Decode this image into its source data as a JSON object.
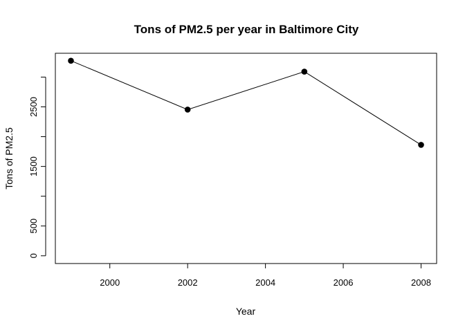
{
  "chart_data": {
    "type": "line",
    "title": "Tons of PM2.5 per year in Baltimore City",
    "xlabel": "Year",
    "ylabel": "Tons of PM2.5",
    "x": [
      1999,
      2002,
      2005,
      2008
    ],
    "series": [
      {
        "values": [
          3274.18,
          2453.92,
          3091.35,
          1862.28
        ]
      }
    ],
    "xlim": [
      1998.6,
      2008.4
    ],
    "ylim": [
      -130,
      3400
    ],
    "xticks": [
      2000,
      2002,
      2004,
      2006,
      2008
    ],
    "yticks": [
      0,
      500,
      1000,
      1500,
      2000,
      2500,
      3000
    ],
    "yticklabels": [
      "0",
      "500",
      "",
      "1500",
      "",
      "2500",
      ""
    ],
    "grid": false,
    "legend": "none",
    "marker": "filled-circle",
    "color": "#000000"
  }
}
